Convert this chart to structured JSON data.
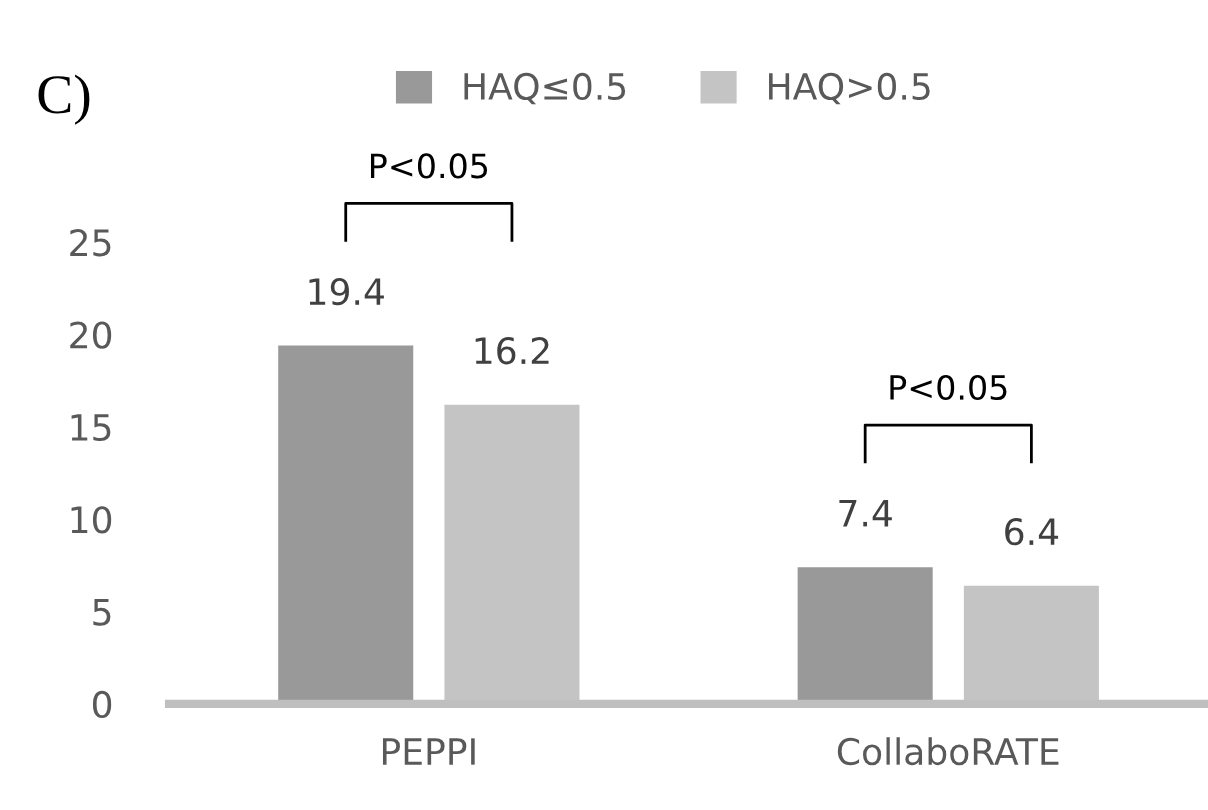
{
  "chart_data": {
    "type": "bar",
    "categories": [
      "PEPPI",
      "CollaboRATE"
    ],
    "series": [
      {
        "name": "HAQ≤0.5",
        "color": "#999999",
        "values": [
          19.4,
          7.4
        ]
      },
      {
        "name": "HAQ>0.5",
        "color": "#c4c4c4",
        "values": [
          16.2,
          6.4
        ]
      }
    ],
    "ylim": [
      0,
      25
    ],
    "yticks": [
      0,
      5,
      10,
      15,
      20,
      25
    ],
    "data_labels": true,
    "legend": "top",
    "grid": false,
    "annotations": [
      "C)",
      "P<0.05",
      "P<0.05"
    ]
  }
}
